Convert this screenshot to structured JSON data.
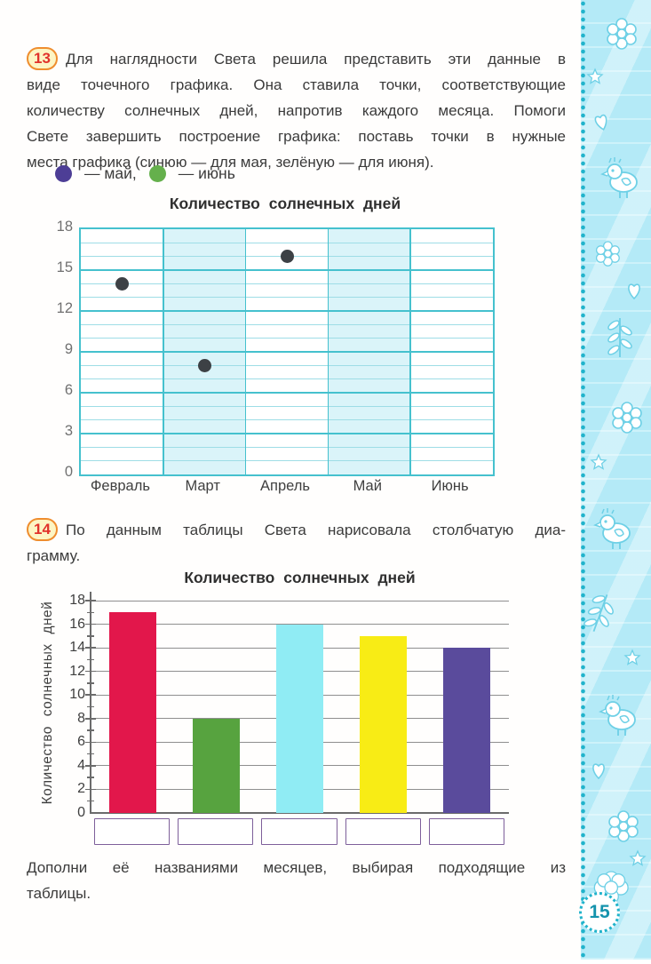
{
  "page_number": "15",
  "colors": {
    "strip_background": "#b4eaf7",
    "strip_dots": "#21b3cb",
    "badge_border": "#ef8d2e",
    "badge_background": "#fdf5c4",
    "badge_text": "#e1322b",
    "body_text": "#3b3b3b"
  },
  "task13": {
    "badge": "13",
    "lines": [
      "Для наглядности Света решила представить эти данные в",
      "виде точечного графика. Она ставила точки, соответствующие",
      "количеству солнечных дней, напротив каждого месяца. Помоги",
      "Свете завершить построение графика: поставь точки в нужные",
      "места графика (синюю — для мая, зелёную — для июня)."
    ],
    "legend": [
      {
        "name": "may",
        "label": "—  май,",
        "color": "#4d3e96"
      },
      {
        "name": "june",
        "label": "—  июнь",
        "color": "#65b04c"
      }
    ]
  },
  "task14": {
    "badge": "14",
    "lines": [
      "По данным таблицы Света нарисовала столбчатую диа-",
      "грамму."
    ]
  },
  "closing_lines": [
    "Дополни её названиями месяцев, выбирая подходящие из",
    "таблицы."
  ],
  "chart_data": [
    {
      "type": "scatter",
      "title": "Количество солнечных дней",
      "categories": [
        "Февраль",
        "Март",
        "Апрель",
        "Май",
        "Июнь"
      ],
      "values": [
        14,
        8,
        16,
        null,
        null
      ],
      "ylim": [
        0,
        18
      ],
      "ytick_step": 3,
      "grid_minor_step": 1,
      "dot_color": "#3d4145",
      "shaded_columns": [
        1,
        3
      ],
      "grid": "on",
      "legend_position": "above"
    },
    {
      "type": "bar",
      "title": "Количество солнечных дней",
      "ylabel": "Количество солнечных дней",
      "categories": [
        "",
        "",
        "",
        "",
        ""
      ],
      "values": [
        17,
        8,
        16,
        15,
        14
      ],
      "bar_colors": [
        "#e2174b",
        "#57a33f",
        "#90ecf4",
        "#f8ec15",
        "#5a4b9c"
      ],
      "ylim": [
        0,
        18
      ],
      "ytick_step": 2,
      "grid": "on"
    }
  ]
}
